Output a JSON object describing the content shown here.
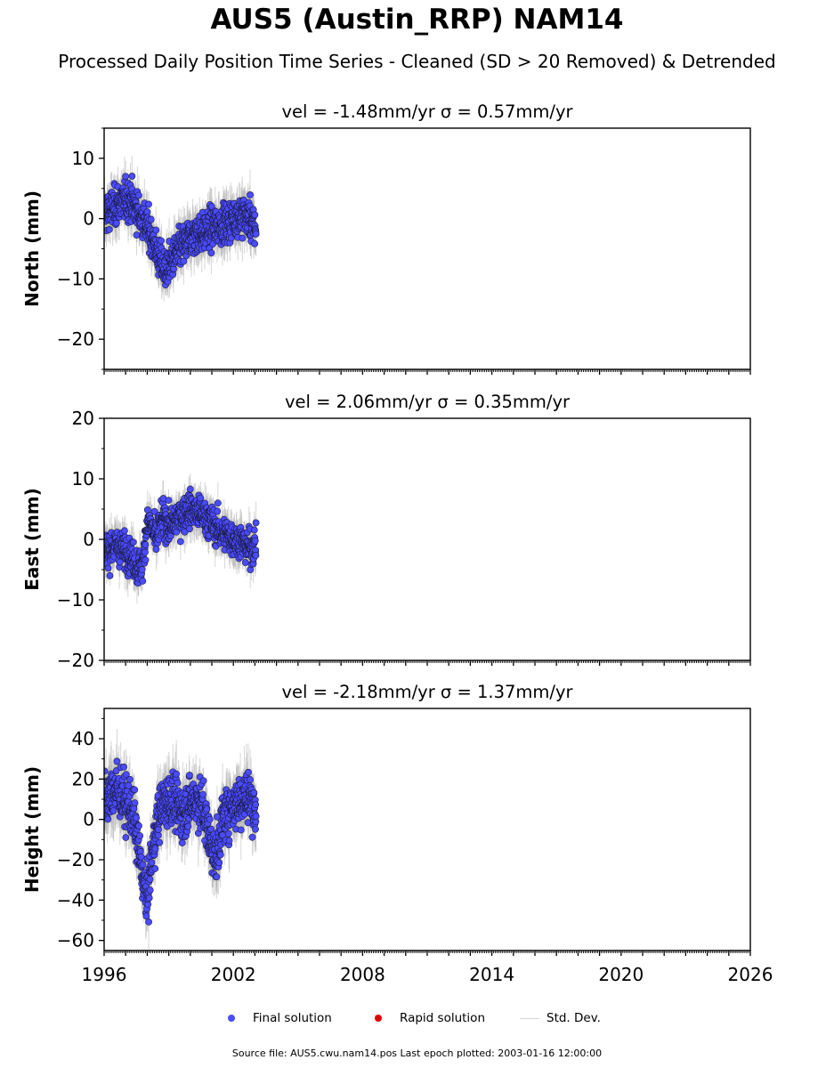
{
  "title": "AUS5 (Austin_RRP) NAM14",
  "subtitle": "Processed Daily Position Time Series - Cleaned (SD > 20 Removed) & Detrended",
  "legend": {
    "final": "Final solution",
    "rapid": "Rapid solution",
    "std": "Std. Dev."
  },
  "source_note": "Source file: AUS5.cwu.nam14.pos  Last epoch plotted: 2003-01-16 12:00:00",
  "colors": {
    "final": "#4b4bff",
    "rapid": "#e00000",
    "std": "#c8c8c8",
    "axes": "#000000"
  },
  "chart_data": [
    {
      "type": "scatter",
      "title": "vel = -1.48mm/yr   σ = 0.57mm/yr",
      "ylabel": "North (mm)",
      "xlim": [
        1996,
        2026
      ],
      "ylim": [
        -25,
        15
      ],
      "yticks": [
        10,
        0,
        -10,
        -20
      ],
      "yticklabels": [
        "10",
        "0",
        "−10",
        "−20"
      ],
      "series": [
        {
          "name": "Final solution",
          "x": [
            1996.05,
            1996.3,
            1996.55,
            1996.8,
            1997.0,
            1997.2,
            1997.4,
            1997.6,
            1997.8,
            1998.0,
            1998.2,
            1998.4,
            1998.6,
            1998.8,
            1999.0,
            1999.2,
            1999.4,
            1999.6,
            1999.8,
            2000.0,
            2000.3,
            2000.6,
            2000.9,
            2001.2,
            2001.5,
            2001.8,
            2002.1,
            2002.4,
            2002.7,
            2003.0
          ],
          "y": [
            1.0,
            1.5,
            2.2,
            2.8,
            3.0,
            3.2,
            2.0,
            0.8,
            -0.2,
            -1.5,
            -3.0,
            -5.2,
            -7.0,
            -8.5,
            -8.0,
            -6.5,
            -5.5,
            -4.5,
            -4.0,
            -3.2,
            -2.5,
            -2.3,
            -1.8,
            -1.2,
            -0.8,
            -0.5,
            0.2,
            0.5,
            0.3,
            -1.5
          ],
          "std_mm": 2.5
        }
      ]
    },
    {
      "type": "scatter",
      "title": "vel = 2.06mm/yr   σ = 0.35mm/yr",
      "ylabel": "East (mm)",
      "xlim": [
        1996,
        2026
      ],
      "ylim": [
        -20,
        20
      ],
      "yticks": [
        20,
        10,
        0,
        -10,
        -20
      ],
      "yticklabels": [
        "20",
        "10",
        "0",
        "−10",
        "−20"
      ],
      "series": [
        {
          "name": "Final solution",
          "x": [
            1996.05,
            1996.3,
            1996.55,
            1996.8,
            1997.0,
            1997.2,
            1997.4,
            1997.6,
            1997.8,
            1998.0,
            1998.2,
            1998.4,
            1998.6,
            1998.8,
            1999.0,
            1999.2,
            1999.4,
            1999.6,
            1999.8,
            2000.0,
            2000.3,
            2000.6,
            2000.9,
            2001.2,
            2001.5,
            2001.8,
            2002.1,
            2002.4,
            2002.7,
            2003.0
          ],
          "y": [
            -2.0,
            -1.5,
            -1.0,
            -1.5,
            -2.0,
            -2.5,
            -3.5,
            -5.0,
            -4.0,
            3.0,
            2.0,
            0.0,
            2.5,
            3.5,
            2.0,
            2.5,
            3.5,
            4.0,
            4.5,
            5.0,
            4.5,
            4.0,
            3.0,
            2.0,
            1.0,
            0.5,
            0.0,
            -0.5,
            -1.5,
            -1.0
          ],
          "std_mm": 2.2
        }
      ]
    },
    {
      "type": "scatter",
      "title": "vel = -2.18mm/yr   σ = 1.37mm/yr",
      "ylabel": "Height (mm)",
      "xlim": [
        1996,
        2026
      ],
      "ylim": [
        -65,
        55
      ],
      "yticks": [
        40,
        20,
        0,
        -20,
        -40,
        -60
      ],
      "yticklabels": [
        "40",
        "20",
        "0",
        "−20",
        "−40",
        "−60"
      ],
      "xticks": [
        1996,
        2002,
        2008,
        2014,
        2020,
        2026
      ],
      "xticklabels": [
        "1996",
        "2002",
        "2008",
        "2014",
        "2020",
        "2026"
      ],
      "series": [
        {
          "name": "Final solution",
          "x": [
            1996.05,
            1996.3,
            1996.55,
            1996.8,
            1997.0,
            1997.2,
            1997.4,
            1997.6,
            1997.8,
            1998.0,
            1998.2,
            1998.4,
            1998.6,
            1998.8,
            1999.0,
            1999.2,
            1999.4,
            1999.6,
            1999.8,
            2000.0,
            2000.3,
            2000.6,
            2000.9,
            2001.2,
            2001.5,
            2001.8,
            2002.1,
            2002.4,
            2002.7,
            2003.0
          ],
          "y": [
            10.0,
            12.0,
            15.0,
            12.0,
            8.0,
            5.0,
            0.0,
            -15.0,
            -30.0,
            -40.0,
            -20.0,
            -5.0,
            5.0,
            8.0,
            10.0,
            10.0,
            5.0,
            3.0,
            5.0,
            8.0,
            10.0,
            5.0,
            -10.0,
            -20.0,
            0.0,
            5.0,
            8.0,
            10.0,
            12.0,
            5.0
          ],
          "std_mm": 10.0
        }
      ]
    }
  ]
}
